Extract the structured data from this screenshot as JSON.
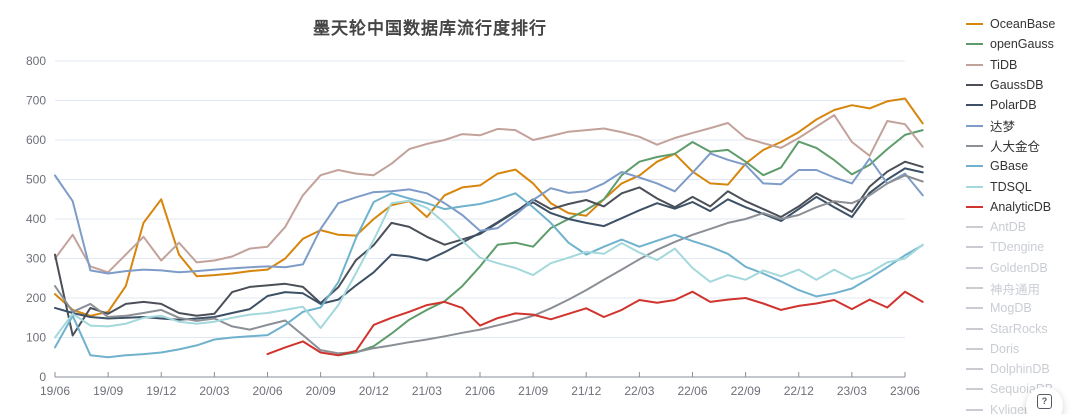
{
  "title": "墨天轮中国数据库流行度排行",
  "help_button": {
    "label": "?"
  },
  "chart_data": {
    "type": "line",
    "title": "墨天轮中国数据库流行度排行",
    "xlabel": "",
    "ylabel": "",
    "ylim": [
      0,
      800
    ],
    "y_ticks": [
      0,
      100,
      200,
      300,
      400,
      500,
      600,
      700,
      800
    ],
    "x_tick_labels": [
      "19/06",
      "19/09",
      "19/12",
      "20/03",
      "20/06",
      "20/09",
      "20/12",
      "21/03",
      "21/06",
      "21/09",
      "21/12",
      "22/03",
      "22/06",
      "22/09",
      "22/12",
      "23/03",
      "23/06"
    ],
    "x_months_per_tick": 3,
    "grid": true,
    "legend_position": "right",
    "axis_color": "#8a8f99",
    "tick_label_color": "#6E7079",
    "grid_color": "#e2e8f3",
    "series": [
      {
        "name": "OceanBase",
        "color": "#d7860d",
        "enabled": true,
        "values": [
          210,
          170,
          155,
          165,
          230,
          390,
          450,
          310,
          255,
          258,
          262,
          268,
          272,
          300,
          350,
          372,
          360,
          358,
          400,
          435,
          445,
          405,
          460,
          480,
          485,
          515,
          525,
          490,
          440,
          415,
          408,
          450,
          490,
          510,
          545,
          565,
          520,
          490,
          487,
          540,
          575,
          595,
          620,
          652,
          676,
          688,
          680,
          698,
          705,
          642
        ]
      },
      {
        "name": "openGauss",
        "color": "#5f9c6c",
        "enabled": true,
        "values": [
          null,
          null,
          null,
          null,
          null,
          null,
          null,
          null,
          null,
          null,
          null,
          null,
          null,
          null,
          null,
          null,
          55,
          62,
          78,
          110,
          145,
          170,
          192,
          230,
          280,
          335,
          340,
          330,
          377,
          400,
          423,
          450,
          511,
          545,
          557,
          565,
          595,
          570,
          575,
          545,
          511,
          530,
          596,
          580,
          549,
          513,
          537,
          577,
          613,
          625
        ]
      },
      {
        "name": "TiDB",
        "color": "#c3a29b",
        "enabled": true,
        "values": [
          300,
          360,
          280,
          265,
          310,
          355,
          295,
          340,
          290,
          295,
          305,
          325,
          330,
          380,
          460,
          511,
          524,
          515,
          511,
          540,
          577,
          590,
          600,
          615,
          612,
          628,
          625,
          600,
          610,
          621,
          625,
          629,
          620,
          608,
          588,
          605,
          618,
          630,
          643,
          605,
          592,
          580,
          605,
          634,
          663,
          595,
          560,
          648,
          640,
          583
        ]
      },
      {
        "name": "GaussDB",
        "color": "#4b5058",
        "enabled": true,
        "values": [
          310,
          105,
          175,
          160,
          185,
          190,
          185,
          162,
          155,
          160,
          215,
          228,
          232,
          236,
          228,
          187,
          227,
          296,
          334,
          390,
          380,
          355,
          335,
          348,
          362,
          390,
          418,
          450,
          425,
          438,
          448,
          432,
          465,
          480,
          452,
          430,
          456,
          432,
          470,
          445,
          425,
          405,
          432,
          465,
          442,
          418,
          482,
          520,
          545,
          532
        ]
      },
      {
        "name": "PolarDB",
        "color": "#3d5166",
        "enabled": true,
        "values": [
          175,
          162,
          152,
          148,
          150,
          152,
          148,
          145,
          148,
          152,
          162,
          172,
          205,
          215,
          212,
          185,
          196,
          232,
          265,
          310,
          305,
          295,
          316,
          340,
          365,
          392,
          420,
          442,
          415,
          400,
          390,
          382,
          402,
          422,
          440,
          426,
          443,
          420,
          450,
          430,
          413,
          395,
          425,
          456,
          430,
          405,
          466,
          500,
          528,
          518
        ]
      },
      {
        "name": "达梦",
        "color": "#7e9cc7",
        "enabled": true,
        "values": [
          510,
          445,
          270,
          262,
          268,
          272,
          270,
          265,
          268,
          272,
          275,
          278,
          280,
          278,
          285,
          375,
          440,
          455,
          468,
          470,
          475,
          465,
          440,
          410,
          370,
          377,
          410,
          448,
          478,
          466,
          470,
          490,
          519,
          505,
          490,
          470,
          517,
          566,
          550,
          537,
          490,
          488,
          524,
          524,
          505,
          490,
          553,
          490,
          515,
          460
        ]
      },
      {
        "name": "人大金仓",
        "color": "#8b8f96",
        "enabled": true,
        "values": [
          230,
          165,
          185,
          152,
          155,
          162,
          170,
          150,
          142,
          148,
          128,
          120,
          132,
          143,
          106,
          68,
          60,
          63,
          73,
          80,
          88,
          95,
          103,
          112,
          120,
          131,
          142,
          155,
          174,
          196,
          220,
          246,
          272,
          298,
          322,
          342,
          360,
          375,
          390,
          400,
          415,
          400,
          410,
          430,
          445,
          440,
          460,
          490,
          510,
          495
        ]
      },
      {
        "name": "GBase",
        "color": "#70b2cd",
        "enabled": true,
        "values": [
          75,
          155,
          55,
          50,
          55,
          58,
          62,
          70,
          80,
          95,
          100,
          103,
          106,
          132,
          165,
          176,
          240,
          352,
          443,
          465,
          452,
          440,
          425,
          432,
          438,
          450,
          465,
          430,
          390,
          340,
          310,
          330,
          348,
          330,
          345,
          360,
          344,
          330,
          312,
          279,
          262,
          242,
          220,
          204,
          212,
          224,
          250,
          278,
          308,
          334
        ]
      },
      {
        "name": "TDSQL",
        "color": "#a3d8dc",
        "enabled": true,
        "values": [
          100,
          160,
          130,
          128,
          135,
          150,
          155,
          140,
          135,
          140,
          150,
          158,
          162,
          170,
          178,
          124,
          182,
          263,
          347,
          440,
          446,
          428,
          390,
          345,
          302,
          288,
          276,
          258,
          288,
          302,
          317,
          312,
          339,
          315,
          296,
          325,
          276,
          241,
          258,
          246,
          270,
          255,
          272,
          246,
          272,
          248,
          264,
          290,
          300,
          335
        ]
      },
      {
        "name": "AnalyticDB",
        "color": "#d0342e",
        "enabled": true,
        "values": [
          null,
          null,
          null,
          null,
          null,
          null,
          null,
          null,
          null,
          null,
          null,
          null,
          58,
          75,
          90,
          62,
          55,
          66,
          132,
          150,
          165,
          182,
          190,
          175,
          130,
          149,
          161,
          158,
          146,
          160,
          174,
          152,
          170,
          195,
          188,
          195,
          216,
          190,
          196,
          200,
          186,
          170,
          180,
          186,
          195,
          172,
          196,
          176,
          216,
          190
        ]
      },
      {
        "name": "AntDB",
        "color": "#c9cdd3",
        "enabled": false,
        "values": []
      },
      {
        "name": "TDengine",
        "color": "#c9cdd3",
        "enabled": false,
        "values": []
      },
      {
        "name": "GoldenDB",
        "color": "#c9cdd3",
        "enabled": false,
        "values": []
      },
      {
        "name": "神舟通用",
        "color": "#c9cdd3",
        "enabled": false,
        "values": []
      },
      {
        "name": "MogDB",
        "color": "#c9cdd3",
        "enabled": false,
        "values": []
      },
      {
        "name": "StarRocks",
        "color": "#c9cdd3",
        "enabled": false,
        "values": []
      },
      {
        "name": "Doris",
        "color": "#c9cdd3",
        "enabled": false,
        "values": []
      },
      {
        "name": "DolphinDB",
        "color": "#c9cdd3",
        "enabled": false,
        "values": []
      },
      {
        "name": "SequoiaDB",
        "color": "#c9cdd3",
        "enabled": false,
        "values": []
      },
      {
        "name": "Kyligence",
        "color": "#c9cdd3",
        "enabled": false,
        "values": []
      }
    ]
  }
}
